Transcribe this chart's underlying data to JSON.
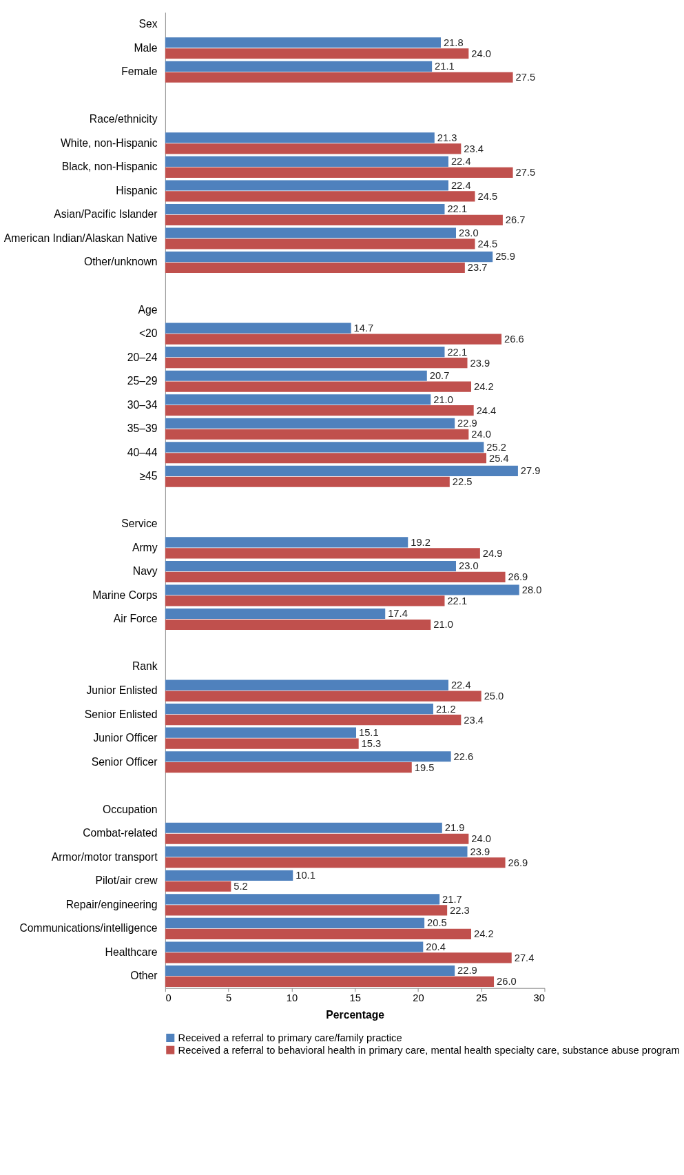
{
  "chart_data": {
    "type": "bar",
    "orientation": "horizontal",
    "xlabel": "Percentage",
    "categories": [
      "Sex",
      "Male",
      "Female",
      null,
      "Race/ethnicity",
      "White, non-Hispanic",
      "Black, non-Hispanic",
      "Hispanic",
      "Asian/Pacific Islander",
      "American Indian/Alaskan Native",
      "Other/unknown",
      null,
      "Age",
      "<20",
      "20–24",
      "25–29",
      "30–34",
      "35–39",
      "40–44",
      "≥45",
      null,
      "Service",
      "Army",
      "Navy",
      "Marine Corps",
      "Air Force",
      null,
      "Rank",
      "Junior Enlisted",
      "Senior Enlisted",
      "Junior Officer",
      "Senior Officer",
      null,
      "Occupation",
      "Combat-related",
      "Armor/motor transport",
      "Pilot/air crew",
      "Repair/engineering",
      "Communications/intelligence",
      "Healthcare",
      "Other"
    ],
    "series": [
      {
        "name": "Received a referral to primary care/family practice",
        "color": "#4f81bd",
        "values": [
          null,
          21.8,
          21.1,
          null,
          null,
          21.3,
          22.4,
          22.4,
          22.1,
          23.0,
          25.9,
          null,
          null,
          14.7,
          22.1,
          20.7,
          21.0,
          22.9,
          25.2,
          27.9,
          null,
          null,
          19.2,
          23.0,
          28.0,
          17.4,
          null,
          null,
          22.4,
          21.2,
          15.1,
          22.6,
          null,
          null,
          21.9,
          23.9,
          10.1,
          21.7,
          20.5,
          20.4,
          22.9
        ],
        "value_labels": [
          null,
          "21.8",
          "21.1",
          null,
          null,
          "21.3",
          "22.4",
          "22.4",
          "22.1",
          "23.0",
          "25.9",
          null,
          null,
          "14.7",
          "22.1",
          "20.7",
          "21.0",
          "22.9",
          "25.2",
          "27.9",
          null,
          null,
          "19.2",
          "23.0",
          "28.0",
          "17.4",
          null,
          null,
          "22.4",
          "21.2",
          "15.1",
          "22.6",
          null,
          null,
          "21.9",
          "23.9",
          "10.1",
          "21.7",
          "20.5",
          "20.4",
          "22.9"
        ]
      },
      {
        "name": "Received a referral to behavioral health in primary care, mental health specialty care, substance abuse program",
        "color": "#c0504d",
        "values": [
          null,
          24.0,
          27.5,
          null,
          null,
          23.4,
          27.5,
          24.5,
          26.7,
          24.5,
          23.7,
          null,
          null,
          26.6,
          23.9,
          24.2,
          24.4,
          24.0,
          25.4,
          22.5,
          null,
          null,
          24.9,
          26.9,
          22.1,
          21.0,
          null,
          null,
          25.0,
          23.4,
          15.3,
          19.5,
          null,
          null,
          24.0,
          26.9,
          5.2,
          22.3,
          24.2,
          27.4,
          26.0
        ],
        "value_labels": [
          null,
          "24.0",
          "27.5",
          null,
          null,
          "23.4",
          "27.5",
          "24.5",
          "26.7",
          "24.5",
          "23.7",
          null,
          null,
          "26.6",
          "23.9",
          "24.2",
          "24.4",
          "24.0",
          "25.4",
          "22.5",
          null,
          null,
          "24.9",
          "26.9",
          "22.1",
          "21.0",
          null,
          null,
          "25.0",
          "23.4",
          "15.3",
          "19.5",
          null,
          null,
          "24.0",
          "26.9",
          "5.2",
          "22.3",
          "24.2",
          "27.4",
          "26.0"
        ]
      }
    ],
    "xlim": [
      0,
      30
    ],
    "xticks": [
      0,
      5,
      10,
      15,
      20,
      25,
      30
    ],
    "grid": false,
    "legend": "bottom"
  }
}
